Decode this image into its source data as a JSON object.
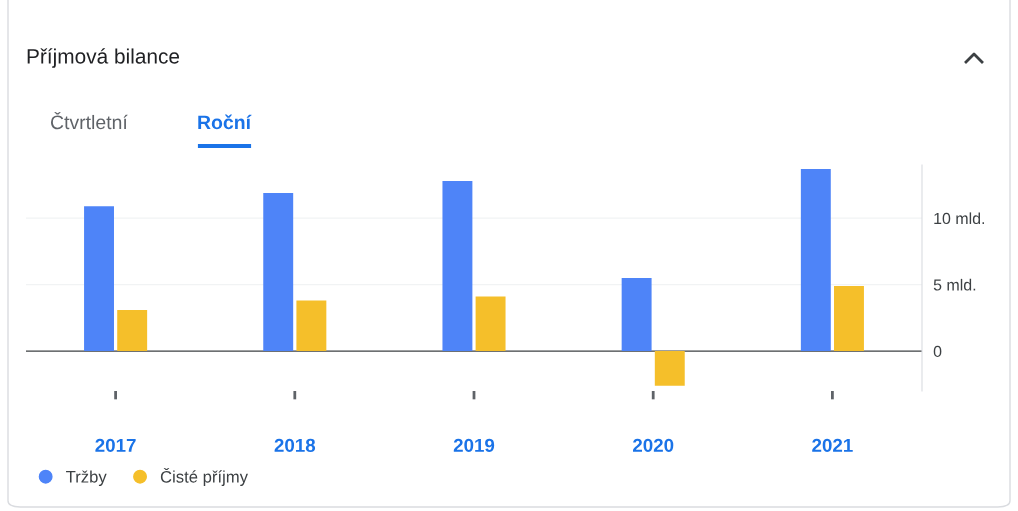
{
  "chart_data": {
    "type": "bar",
    "title": "Příjmová bilance",
    "annotations": [
      "Čtvrtletní",
      "Roční"
    ],
    "categories": [
      "2017",
      "2018",
      "2019",
      "2020",
      "2021"
    ],
    "series": [
      {
        "name": "Tržby",
        "color": "#4e84f8",
        "values": [
          10.9,
          11.9,
          12.8,
          5.5,
          13.7
        ]
      },
      {
        "name": "Čisté příjmy",
        "color": "#f5bf2a",
        "values": [
          3.1,
          3.8,
          4.1,
          -2.6,
          4.9
        ]
      }
    ],
    "ylim": [
      -3,
      14
    ],
    "yticks": [
      {
        "value": 0,
        "label": "0"
      },
      {
        "value": 5,
        "label": "5 mld."
      },
      {
        "value": 10,
        "label": "10 mld."
      }
    ],
    "grid": "y",
    "legend": "bottom left"
  }
}
